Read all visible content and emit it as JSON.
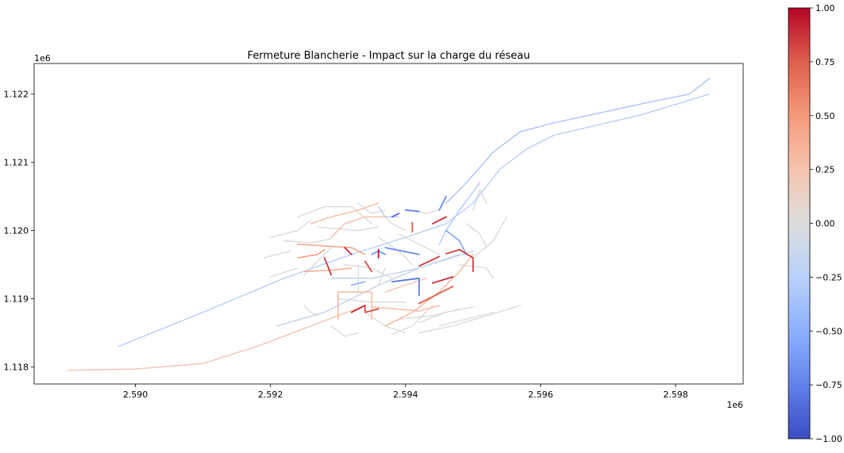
{
  "chart_data": {
    "type": "map",
    "title": "Fermeture Blancherie - Impact sur la charge du réseau",
    "x_axis": {
      "ticks": [
        2.59,
        2.592,
        2.594,
        2.596,
        2.598
      ],
      "tick_labels": [
        "2.590",
        "2.592",
        "2.594",
        "2.596",
        "2.598"
      ],
      "offset_label": "1e6",
      "range": [
        2.5885,
        2.599
      ]
    },
    "y_axis": {
      "ticks": [
        1.118,
        1.119,
        1.12,
        1.121,
        1.122
      ],
      "tick_labels": [
        "1.118",
        "1.119",
        "1.120",
        "1.121",
        "1.122"
      ],
      "offset_label": "1e6",
      "range": [
        1.11775,
        1.12245
      ]
    },
    "colorbar": {
      "colormap": "coolwarm",
      "range": [
        -1.0,
        1.0
      ],
      "ticks": [
        -1.0,
        -0.75,
        -0.5,
        -0.25,
        0.0,
        0.25,
        0.5,
        0.75,
        1.0
      ],
      "tick_labels": [
        "−1.00",
        "−0.75",
        "−0.50",
        "−0.25",
        "0.00",
        "0.25",
        "0.50",
        "0.75",
        "1.00"
      ],
      "colors": {
        "low": "#3b4cc0",
        "mid": "#dddddd",
        "high": "#b40426"
      }
    },
    "grid": false,
    "segments": [
      {
        "points": [
          [
            2.589,
            1.11795
          ],
          [
            2.59,
            1.11797
          ],
          [
            2.591,
            1.11805
          ],
          [
            2.5918,
            1.1183
          ],
          [
            2.5926,
            1.1186
          ],
          [
            2.5934,
            1.1189
          ]
        ],
        "value": 0.22
      },
      {
        "points": [
          [
            2.58975,
            1.1183
          ],
          [
            2.591,
            1.1188
          ],
          [
            2.5922,
            1.1193
          ],
          [
            2.5932,
            1.11965
          ],
          [
            2.594,
            1.1199
          ],
          [
            2.5946,
            1.1201
          ],
          [
            2.595,
            1.1204
          ],
          [
            2.5954,
            1.1209
          ],
          [
            2.5958,
            1.1212
          ],
          [
            2.5962,
            1.1214
          ],
          [
            2.5975,
            1.1217
          ],
          [
            2.5985,
            1.122
          ]
        ],
        "value": -0.22
      },
      {
        "points": [
          [
            2.5946,
            1.1204
          ],
          [
            2.5949,
            1.1207
          ],
          [
            2.5953,
            1.12115
          ],
          [
            2.5957,
            1.12145
          ],
          [
            2.5962,
            1.12158
          ],
          [
            2.5976,
            1.12188
          ],
          [
            2.5982,
            1.122
          ],
          [
            2.5985,
            1.12223
          ]
        ],
        "value": -0.32
      },
      {
        "points": [
          [
            2.5921,
            1.1186
          ],
          [
            2.5928,
            1.1188
          ],
          [
            2.5936,
            1.1192
          ],
          [
            2.5942,
            1.11945
          ],
          [
            2.595,
            1.1197
          ]
        ],
        "value": -0.15
      },
      {
        "points": [
          [
            2.5929,
            1.1193
          ],
          [
            2.5935,
            1.1193
          ],
          [
            2.5942,
            1.11945
          ],
          [
            2.5948,
            1.11965
          ]
        ],
        "value": -0.18
      },
      {
        "points": [
          [
            2.5945,
            1.1198
          ],
          [
            2.5946,
            1.12
          ],
          [
            2.5948,
            1.1203
          ],
          [
            2.5951,
            1.1207
          ]
        ],
        "value": -0.28
      },
      {
        "points": [
          [
            2.5937,
            1.1186
          ],
          [
            2.5941,
            1.1188
          ],
          [
            2.5945,
            1.1191
          ],
          [
            2.5948,
            1.1194
          ],
          [
            2.595,
            1.11965
          ]
        ],
        "value": 0.32
      },
      {
        "points": [
          [
            2.593,
            1.1187
          ],
          [
            2.593,
            1.1191
          ]
        ],
        "value": 0.35
      },
      {
        "points": [
          [
            2.593,
            1.1191
          ],
          [
            2.5935,
            1.1191
          ],
          [
            2.5935,
            1.1187
          ]
        ],
        "value": 0.3
      },
      {
        "points": [
          [
            2.5925,
            1.1194
          ],
          [
            2.5929,
            1.11942
          ],
          [
            2.5932,
            1.11945
          ]
        ],
        "value": 0.4
      },
      {
        "points": [
          [
            2.5924,
            1.1196
          ],
          [
            2.5927,
            1.11965
          ],
          [
            2.5928,
            1.11972
          ]
        ],
        "value": 0.5
      },
      {
        "points": [
          [
            2.5924,
            1.1198
          ],
          [
            2.5932,
            1.11975
          ],
          [
            2.5934,
            1.11965
          ]
        ],
        "value": 0.45
      },
      {
        "points": [
          [
            2.5926,
            1.1201
          ],
          [
            2.5929,
            1.1202
          ],
          [
            2.5933,
            1.1203
          ],
          [
            2.5936,
            1.1204
          ]
        ],
        "value": 0.3
      },
      {
        "points": [
          [
            2.5929,
            1.1199
          ],
          [
            2.5931,
            1.1201
          ],
          [
            2.5934,
            1.1202
          ],
          [
            2.5937,
            1.1202
          ]
        ],
        "value": 0.26
      },
      {
        "points": [
          [
            2.5937,
            1.1191
          ],
          [
            2.594,
            1.1192
          ],
          [
            2.5943,
            1.1193
          ]
        ],
        "value": 0.22
      },
      {
        "points": [
          [
            2.5935,
            1.11888
          ],
          [
            2.5942,
            1.11882
          ],
          [
            2.5945,
            1.1189
          ]
        ],
        "value": 0.3
      },
      {
        "points": [
          [
            2.5928,
            1.1196
          ],
          [
            2.5929,
            1.11935
          ]
        ],
        "value": 0.85
      },
      {
        "points": [
          [
            2.5934,
            1.11955
          ],
          [
            2.5935,
            1.1194
          ]
        ],
        "value": 0.8
      },
      {
        "points": [
          [
            2.5931,
            1.11975
          ],
          [
            2.5932,
            1.11965
          ]
        ],
        "value": 0.9
      },
      {
        "points": [
          [
            2.5936,
            1.11972
          ],
          [
            2.5936,
            1.1196
          ]
        ],
        "value": 0.95
      },
      {
        "points": [
          [
            2.5942,
            1.11948
          ],
          [
            2.5945,
            1.11962
          ]
        ],
        "value": 0.85
      },
      {
        "points": [
          [
            2.5944,
            1.1201
          ],
          [
            2.5946,
            1.1202
          ]
        ],
        "value": 0.9
      },
      {
        "points": [
          [
            2.5941,
            1.12012
          ],
          [
            2.5941,
            1.11998
          ]
        ],
        "value": 0.75
      },
      {
        "points": [
          [
            2.5932,
            1.1188
          ],
          [
            2.5934,
            1.1189
          ]
        ],
        "value": 0.9
      },
      {
        "points": [
          [
            2.5934,
            1.1189
          ],
          [
            2.5934,
            1.1188
          ],
          [
            2.5936,
            1.11885
          ]
        ],
        "value": 0.8
      },
      {
        "points": [
          [
            2.5944,
            1.11923
          ],
          [
            2.5947,
            1.11932
          ]
        ],
        "value": 0.9
      },
      {
        "points": [
          [
            2.5942,
            1.11893
          ],
          [
            2.5947,
            1.11918
          ]
        ],
        "value": 0.75
      },
      {
        "points": [
          [
            2.5946,
            1.11966
          ],
          [
            2.5948,
            1.11972
          ],
          [
            2.595,
            1.1196
          ],
          [
            2.595,
            1.1194
          ]
        ],
        "value": 0.85
      },
      {
        "points": [
          [
            2.5938,
            1.1202
          ],
          [
            2.5939,
            1.12025
          ]
        ],
        "value": -0.85
      },
      {
        "points": [
          [
            2.594,
            1.1203
          ],
          [
            2.5942,
            1.12028
          ]
        ],
        "value": -0.75
      },
      {
        "points": [
          [
            2.5937,
            1.11975
          ],
          [
            2.5942,
            1.11965
          ]
        ],
        "value": -0.7
      },
      {
        "points": [
          [
            2.5938,
            1.11925
          ],
          [
            2.5942,
            1.1193
          ],
          [
            2.5942,
            1.11905
          ]
        ],
        "value": -0.8
      },
      {
        "points": [
          [
            2.5946,
            1.12
          ],
          [
            2.5948,
            1.11985
          ],
          [
            2.5949,
            1.11965
          ]
        ],
        "value": -0.6
      },
      {
        "points": [
          [
            2.5945,
            1.1203
          ],
          [
            2.5946,
            1.1205
          ]
        ],
        "value": -0.7
      },
      {
        "points": [
          [
            2.5935,
            1.11965
          ],
          [
            2.5936,
            1.1197
          ],
          [
            2.5937,
            1.11965
          ]
        ],
        "value": -0.65
      },
      {
        "points": [
          [
            2.5932,
            1.1192
          ],
          [
            2.5934,
            1.11925
          ]
        ],
        "value": -0.55
      },
      {
        "points": [
          [
            2.5924,
            1.1202
          ],
          [
            2.5928,
            1.12035
          ],
          [
            2.5932,
            1.12035
          ],
          [
            2.5935,
            1.1201
          ]
        ],
        "value": 0.0
      },
      {
        "points": [
          [
            2.592,
            1.1199
          ],
          [
            2.5924,
            1.12
          ],
          [
            2.5926,
            1.12015
          ]
        ],
        "value": 0.0
      },
      {
        "points": [
          [
            2.5923,
            1.1197
          ],
          [
            2.5919,
            1.1196
          ]
        ],
        "value": 0.0
      },
      {
        "points": [
          [
            2.5924,
            1.11945
          ],
          [
            2.592,
            1.11932
          ]
        ],
        "value": 0.0
      },
      {
        "points": [
          [
            2.5929,
            1.11975
          ],
          [
            2.5927,
            1.11955
          ],
          [
            2.5925,
            1.11935
          ]
        ],
        "value": 0.0
      },
      {
        "points": [
          [
            2.5933,
            1.1204
          ],
          [
            2.5935,
            1.12025
          ],
          [
            2.5937,
            1.1203
          ]
        ],
        "value": 0.0
      },
      {
        "points": [
          [
            2.5937,
            1.1202
          ],
          [
            2.5938,
            1.1201
          ],
          [
            2.594,
            1.12
          ]
        ],
        "value": 0.0
      },
      {
        "points": [
          [
            2.5939,
            1.11995
          ],
          [
            2.5943,
            1.11975
          ],
          [
            2.5945,
            1.11965
          ]
        ],
        "value": 0.0
      },
      {
        "points": [
          [
            2.5936,
            1.1199
          ],
          [
            2.5939,
            1.1197
          ],
          [
            2.5941,
            1.1195
          ]
        ],
        "value": 0.0
      },
      {
        "points": [
          [
            2.5931,
            1.1195
          ],
          [
            2.5935,
            1.11945
          ],
          [
            2.5938,
            1.1193
          ]
        ],
        "value": 0.0
      },
      {
        "points": [
          [
            2.593,
            1.119
          ],
          [
            2.5935,
            1.11895
          ],
          [
            2.594,
            1.11895
          ]
        ],
        "value": 0.0
      },
      {
        "points": [
          [
            2.5934,
            1.1188
          ],
          [
            2.5937,
            1.1186
          ],
          [
            2.594,
            1.1185
          ]
        ],
        "value": 0.0
      },
      {
        "points": [
          [
            2.5938,
            1.11848
          ],
          [
            2.5941,
            1.1186
          ],
          [
            2.5944,
            1.1189
          ]
        ],
        "value": 0.0
      },
      {
        "points": [
          [
            2.5939,
            1.1187
          ],
          [
            2.5944,
            1.11875
          ],
          [
            2.5948,
            1.11885
          ]
        ],
        "value": 0.0
      },
      {
        "points": [
          [
            2.5942,
            1.11865
          ],
          [
            2.5946,
            1.1188
          ],
          [
            2.595,
            1.11888
          ]
        ],
        "value": 0.0
      },
      {
        "points": [
          [
            2.5942,
            1.1185
          ],
          [
            2.5947,
            1.1186
          ],
          [
            2.5952,
            1.11875
          ],
          [
            2.5957,
            1.1189
          ]
        ],
        "value": 0.0
      },
      {
        "points": [
          [
            2.5945,
            1.1186
          ],
          [
            2.5949,
            1.1187
          ],
          [
            2.5953,
            1.1188
          ]
        ],
        "value": 0.0
      },
      {
        "points": [
          [
            2.595,
            1.1196
          ],
          [
            2.5953,
            1.11985
          ],
          [
            2.5955,
            1.1202
          ]
        ],
        "value": 0.0
      },
      {
        "points": [
          [
            2.5948,
            1.1195
          ],
          [
            2.5952,
            1.11945
          ],
          [
            2.5953,
            1.1193
          ]
        ],
        "value": 0.0
      },
      {
        "points": [
          [
            2.595,
            1.1203
          ],
          [
            2.5951,
            1.1206
          ],
          [
            2.5952,
            1.1204
          ]
        ],
        "value": 0.0
      },
      {
        "points": [
          [
            2.5949,
            1.1201
          ],
          [
            2.5951,
            1.11995
          ],
          [
            2.5952,
            1.11975
          ]
        ],
        "value": 0.0
      },
      {
        "points": [
          [
            2.5922,
            1.11985
          ],
          [
            2.5926,
            1.11982
          ],
          [
            2.5929,
            1.11988
          ]
        ],
        "value": 0.0
      },
      {
        "points": [
          [
            2.5927,
            1.12005
          ],
          [
            2.5933,
            1.12
          ],
          [
            2.5936,
            1.12005
          ]
        ],
        "value": 0.0
      },
      {
        "points": [
          [
            2.5941,
            1.1203
          ],
          [
            2.5943,
            1.12025
          ],
          [
            2.5945,
            1.1203
          ]
        ],
        "value": 0.0
      },
      {
        "points": [
          [
            2.5933,
            1.1191
          ],
          [
            2.5933,
            1.1195
          ]
        ],
        "value": 0.0
      },
      {
        "points": [
          [
            2.5936,
            1.1192
          ],
          [
            2.5937,
            1.11945
          ]
        ],
        "value": 0.0
      },
      {
        "points": [
          [
            2.5925,
            1.1189
          ],
          [
            2.5926,
            1.1188
          ],
          [
            2.5927,
            1.11875
          ]
        ],
        "value": 0.0
      },
      {
        "points": [
          [
            2.5929,
            1.1186
          ],
          [
            2.5931,
            1.11845
          ],
          [
            2.5933,
            1.1185
          ]
        ],
        "value": 0.0
      },
      {
        "points": [
          [
            2.5936,
            1.12035
          ],
          [
            2.5937,
            1.1202
          ],
          [
            2.5939,
            1.1202
          ]
        ],
        "value": -0.25
      }
    ]
  }
}
